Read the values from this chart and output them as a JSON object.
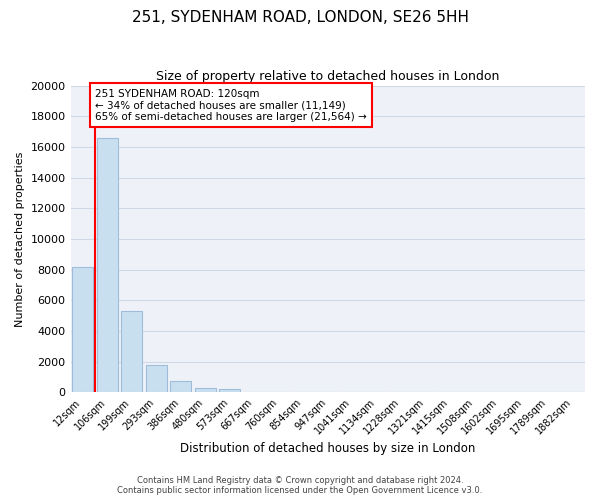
{
  "title": "251, SYDENHAM ROAD, LONDON, SE26 5HH",
  "subtitle": "Size of property relative to detached houses in London",
  "xlabel": "Distribution of detached houses by size in London",
  "ylabel": "Number of detached properties",
  "bar_labels": [
    "12sqm",
    "106sqm",
    "199sqm",
    "293sqm",
    "386sqm",
    "480sqm",
    "573sqm",
    "667sqm",
    "760sqm",
    "854sqm",
    "947sqm",
    "1041sqm",
    "1134sqm",
    "1228sqm",
    "1321sqm",
    "1415sqm",
    "1508sqm",
    "1602sqm",
    "1695sqm",
    "1789sqm",
    "1882sqm"
  ],
  "bar_values": [
    8200,
    16600,
    5300,
    1800,
    750,
    300,
    250,
    0,
    0,
    0,
    0,
    0,
    0,
    0,
    0,
    0,
    0,
    0,
    0,
    0,
    0
  ],
  "bar_color": "#c8dff0",
  "bar_edge_color": "#a0bcd8",
  "vline_color": "red",
  "vline_x": 0.5,
  "annotation_title": "251 SYDENHAM ROAD: 120sqm",
  "annotation_line1": "← 34% of detached houses are smaller (11,149)",
  "annotation_line2": "65% of semi-detached houses are larger (21,564) →",
  "annotation_box_color": "white",
  "annotation_box_edge_color": "red",
  "ylim": [
    0,
    20000
  ],
  "yticks": [
    0,
    2000,
    4000,
    6000,
    8000,
    10000,
    12000,
    14000,
    16000,
    18000,
    20000
  ],
  "footer1": "Contains HM Land Registry data © Crown copyright and database right 2024.",
  "footer2": "Contains public sector information licensed under the Open Government Licence v3.0.",
  "grid_color": "#d0d8e8",
  "background_color": "#eef2f8"
}
